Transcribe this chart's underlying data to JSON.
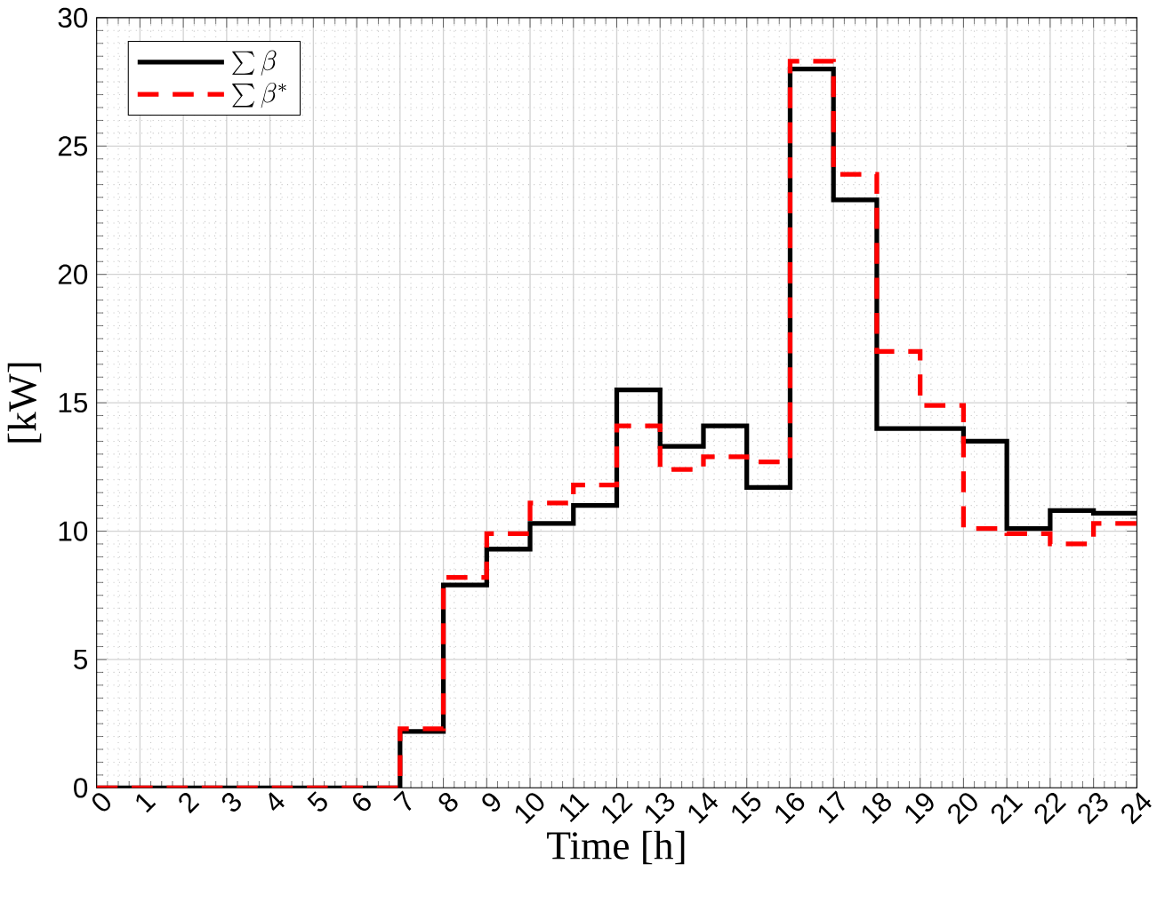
{
  "chart_data": {
    "type": "step",
    "xlabel": "Time [h]",
    "ylabel": "[kW]",
    "x": [
      0,
      1,
      2,
      3,
      4,
      5,
      6,
      7,
      8,
      9,
      10,
      11,
      12,
      13,
      14,
      15,
      16,
      17,
      18,
      19,
      20,
      21,
      22,
      23,
      24
    ],
    "series": [
      {
        "name": "\\sum \\beta",
        "color": "#000000",
        "line_style": "solid",
        "values": [
          0,
          0,
          0,
          0,
          0,
          0,
          0,
          2.2,
          7.9,
          9.3,
          10.3,
          11.0,
          15.5,
          13.3,
          14.1,
          11.7,
          28.0,
          22.9,
          14.0,
          14.0,
          13.5,
          10.1,
          10.8,
          10.7,
          10.7
        ]
      },
      {
        "name": "\\sum \\beta^*",
        "color": "#ff0000",
        "line_style": "dashed",
        "values": [
          0,
          0,
          0,
          0,
          0,
          0,
          0,
          2.3,
          8.2,
          9.9,
          11.1,
          11.8,
          14.1,
          12.4,
          12.9,
          12.7,
          28.3,
          23.9,
          17.0,
          14.9,
          10.1,
          9.9,
          9.5,
          10.3,
          10.3
        ]
      }
    ],
    "xlim": [
      0,
      24
    ],
    "ylim": [
      0,
      30
    ],
    "xticks": [
      0,
      1,
      2,
      3,
      4,
      5,
      6,
      7,
      8,
      9,
      10,
      11,
      12,
      13,
      14,
      15,
      16,
      17,
      18,
      19,
      20,
      21,
      22,
      23,
      24
    ],
    "yticks": [
      0,
      5,
      10,
      15,
      20,
      25,
      30
    ],
    "grid": true,
    "legend": "top left",
    "marker": "none"
  }
}
